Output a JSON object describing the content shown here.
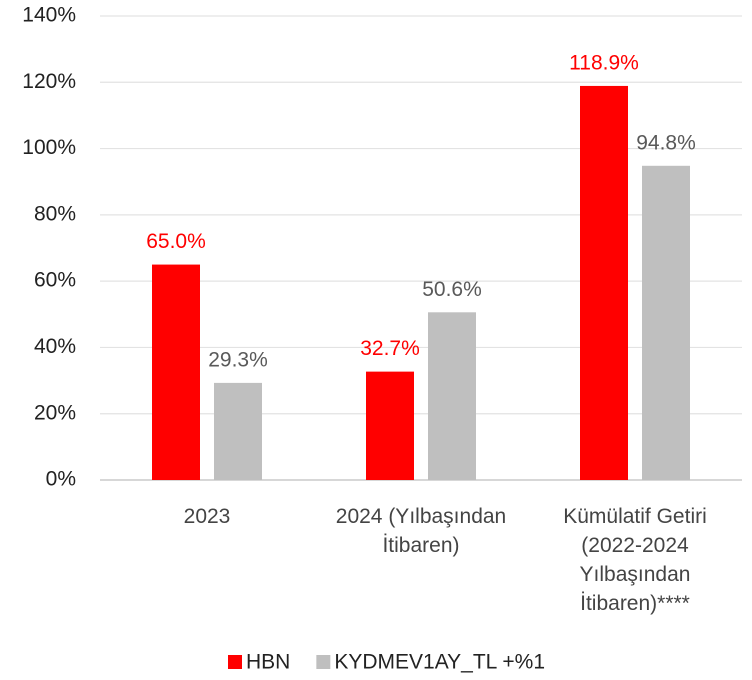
{
  "chart_data": {
    "type": "bar",
    "categories": [
      "2023",
      "2024 (Yılbaşından İtibaren)",
      "Kümülatif Getiri (2022-2024 Yılbaşından İtibaren)****"
    ],
    "series": [
      {
        "name": "HBN",
        "color": "#ff0000",
        "label_color": "#ff0000",
        "values": [
          65.0,
          32.7,
          118.9
        ],
        "value_labels": [
          "65.0%",
          "32.7%",
          "118.9%"
        ]
      },
      {
        "name": "KYDMEV1AY_TL +%1",
        "color": "#bfbfbf",
        "label_color": "#595959",
        "values": [
          29.3,
          50.6,
          94.8
        ],
        "value_labels": [
          "29.3%",
          "50.6%",
          "94.8%"
        ]
      }
    ],
    "ylim": [
      0,
      140
    ],
    "yticks": [
      {
        "value": 0,
        "label": "0%"
      },
      {
        "value": 20,
        "label": "20%"
      },
      {
        "value": 40,
        "label": "40%"
      },
      {
        "value": 60,
        "label": "60%"
      },
      {
        "value": 80,
        "label": "80%"
      },
      {
        "value": 100,
        "label": "100%"
      },
      {
        "value": 120,
        "label": "120%"
      },
      {
        "value": 140,
        "label": "140%"
      }
    ],
    "grid": true,
    "legend": "bottom"
  }
}
